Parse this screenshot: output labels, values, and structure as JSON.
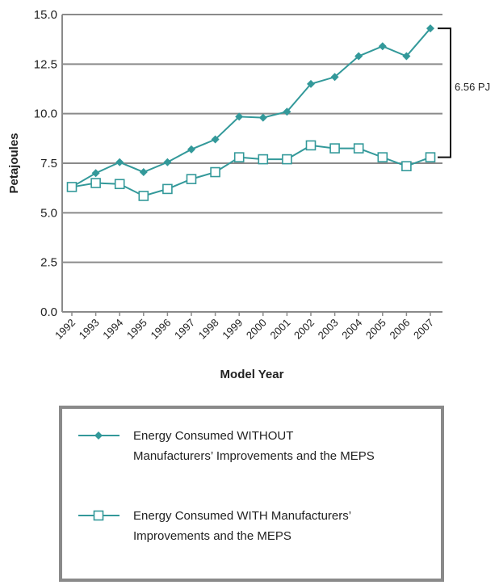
{
  "chart_data": {
    "type": "line",
    "y_label": "Petajoules",
    "x_label": "Model Year",
    "categories": [
      "1992",
      "1993",
      "1994",
      "1995",
      "1996",
      "1997",
      "1998",
      "1999",
      "2000",
      "2001",
      "2002",
      "2003",
      "2004",
      "2005",
      "2006",
      "2007"
    ],
    "series": [
      {
        "name": "Energy Consumed WITHOUT Manufacturers’ Improvements and the MEPS",
        "color": "#33999a",
        "marker": "diamond",
        "values": [
          6.3,
          7.0,
          7.55,
          7.05,
          7.55,
          8.2,
          8.7,
          9.85,
          9.8,
          10.1,
          11.5,
          11.85,
          12.9,
          13.4,
          12.9,
          14.3
        ]
      },
      {
        "name": "Energy Consumed WITH Manufacturers’ Improvements and the MEPS",
        "color": "#33999a",
        "marker": "open-square",
        "values": [
          6.3,
          6.5,
          6.45,
          5.85,
          6.2,
          6.7,
          7.05,
          7.8,
          7.7,
          7.7,
          8.4,
          8.25,
          8.25,
          7.8,
          7.35,
          7.8
        ]
      }
    ],
    "ylim": [
      0,
      15
    ],
    "yticks": [
      {
        "value": 0,
        "label": "0.0"
      },
      {
        "value": 2.5,
        "label": "2.5"
      },
      {
        "value": 5,
        "label": "5.0"
      },
      {
        "value": 7.5,
        "label": "7.5"
      },
      {
        "value": 10,
        "label": "10.0"
      },
      {
        "value": 12.5,
        "label": "12.5"
      },
      {
        "value": 15,
        "label": "15.0"
      }
    ],
    "grid": true,
    "annotation": "6.56 PJ"
  }
}
